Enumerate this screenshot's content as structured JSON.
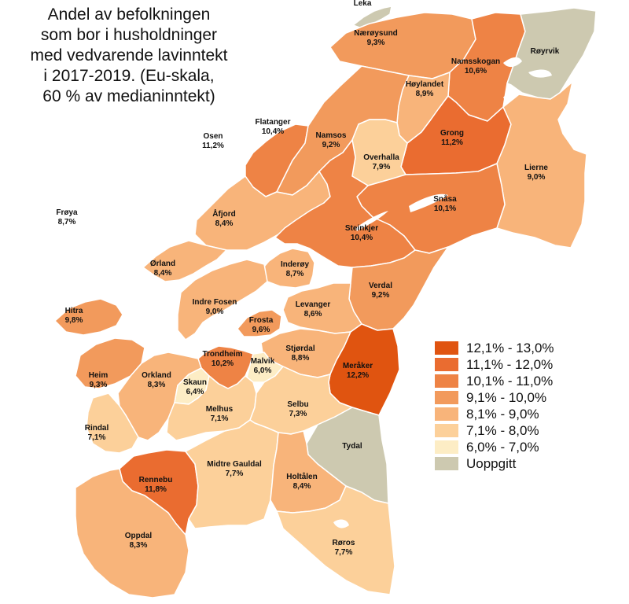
{
  "title": {
    "lines": [
      "Andel av befolkningen",
      "som bor i husholdninger",
      "med vedvarende lavinntekt",
      "i 2017-2019.  (Eu-skala,",
      "60 % av medianinntekt)"
    ]
  },
  "colors": {
    "c1": "#fdedc5",
    "c2": "#fcd09a",
    "c3": "#f8b47a",
    "c4": "#f29a5c",
    "c5": "#ee8345",
    "c6": "#ea6c30",
    "c7": "#e05410",
    "na": "#cdc9b0",
    "sea": "#ffffff",
    "border": "#ffffff"
  },
  "legend": [
    {
      "label": "12,1% - 13,0%",
      "color": "#e05410"
    },
    {
      "label": "11,1% - 12,0%",
      "color": "#ea6c30"
    },
    {
      "label": "10,1% - 11,0%",
      "color": "#ee8345"
    },
    {
      "label": "9,1% - 10,0%",
      "color": "#f29a5c"
    },
    {
      "label": "8,1% - 9,0%",
      "color": "#f8b47a"
    },
    {
      "label": "7,1% - 8,0%",
      "color": "#fcd09a"
    },
    {
      "label": "6,0% - 7,0%",
      "color": "#fdedc5"
    },
    {
      "label": "Uoppgitt",
      "color": "#cdc9b0"
    }
  ],
  "municipalities": [
    {
      "name": "Leka",
      "value": ""
    },
    {
      "name": "Nærøysund",
      "value": "9,3%"
    },
    {
      "name": "Namsskogan",
      "value": "10,6%"
    },
    {
      "name": "Røyrvik",
      "value": ""
    },
    {
      "name": "Høylandet",
      "value": "8,9%"
    },
    {
      "name": "Flatanger",
      "value": "10,4%"
    },
    {
      "name": "Namsos",
      "value": "9,2%"
    },
    {
      "name": "Grong",
      "value": "11,2%"
    },
    {
      "name": "Osen",
      "value": "11,2%"
    },
    {
      "name": "Overhalla",
      "value": "7,9%"
    },
    {
      "name": "Lierne",
      "value": "9,0%"
    },
    {
      "name": "Snåsa",
      "value": "10,1%"
    },
    {
      "name": "Frøya",
      "value": "8,7%"
    },
    {
      "name": "Åfjord",
      "value": "8,4%"
    },
    {
      "name": "Steinkjer",
      "value": "10,4%"
    },
    {
      "name": "Ørland",
      "value": "8,4%"
    },
    {
      "name": "Inderøy",
      "value": "8,7%"
    },
    {
      "name": "Verdal",
      "value": "9,2%"
    },
    {
      "name": "Indre Fosen",
      "value": "9,0%"
    },
    {
      "name": "Levanger",
      "value": "8,6%"
    },
    {
      "name": "Hitra",
      "value": "9,8%"
    },
    {
      "name": "Frosta",
      "value": "9,6%"
    },
    {
      "name": "Stjørdal",
      "value": "8,8%"
    },
    {
      "name": "Trondheim",
      "value": "10,2%"
    },
    {
      "name": "Malvik",
      "value": "6,0%"
    },
    {
      "name": "Meråker",
      "value": "12,2%"
    },
    {
      "name": "Heim",
      "value": "9,3%"
    },
    {
      "name": "Orkland",
      "value": "8,3%"
    },
    {
      "name": "Skaun",
      "value": "6,4%"
    },
    {
      "name": "Selbu",
      "value": "7,3%"
    },
    {
      "name": "Melhus",
      "value": "7,1%"
    },
    {
      "name": "Rindal",
      "value": "7,1%"
    },
    {
      "name": "Tydal",
      "value": ""
    },
    {
      "name": "Rennebu",
      "value": "11,8%"
    },
    {
      "name": "Midtre Gauldal",
      "value": "7,7%"
    },
    {
      "name": "Holtålen",
      "value": "8,4%"
    },
    {
      "name": "Oppdal",
      "value": "8,3%"
    },
    {
      "name": "Røros",
      "value": "7,7%"
    }
  ]
}
